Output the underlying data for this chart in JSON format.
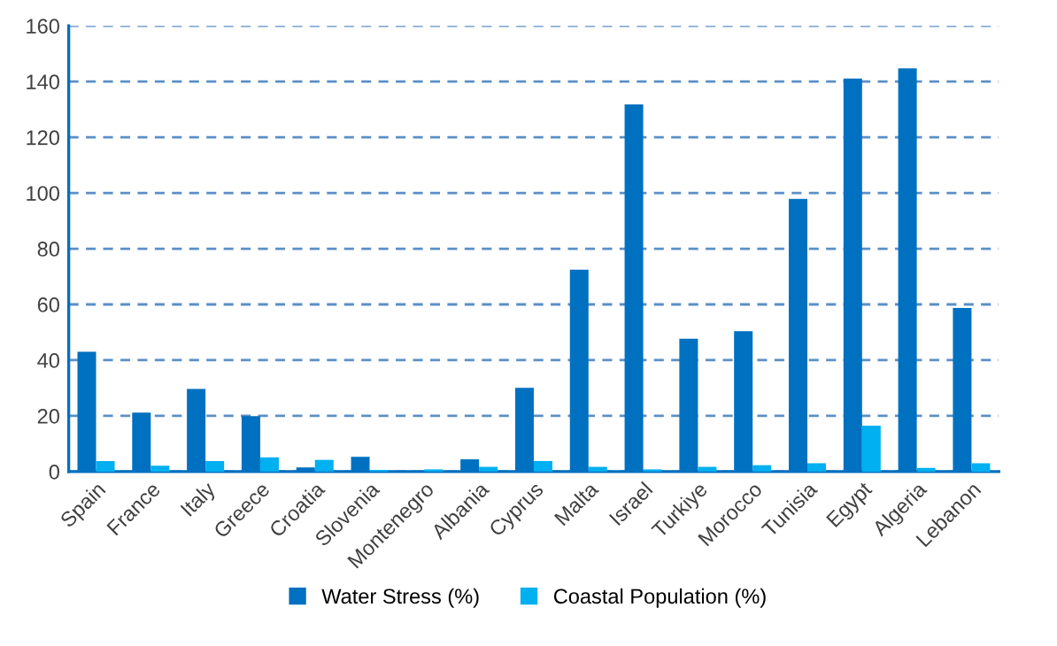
{
  "chart_data": {
    "type": "bar",
    "categories": [
      "Spain",
      "France",
      "Italy",
      "Greece",
      "Croatia",
      "Slovenia",
      "Montenegro",
      "Albania",
      "Cyprus",
      "Malta",
      "Israel",
      "Turkiye",
      "Morocco",
      "Tunisia",
      "Egypt",
      "Algeria",
      "Lebanon"
    ],
    "series": [
      {
        "name": "Water Stress (%)",
        "color": "#0070c0",
        "values": [
          43,
          21.2,
          29.7,
          19.9,
          1.5,
          5.3,
          0.2,
          4.4,
          30.1,
          72.5,
          131.8,
          47.7,
          50.4,
          97.9,
          141.1,
          144.7,
          58.7
        ]
      },
      {
        "name": "Coastal Population (%)",
        "color": "#00b0f0",
        "values": [
          3.8,
          2.1,
          3.8,
          5.1,
          4.2,
          0.6,
          0.8,
          1.7,
          3.8,
          1.7,
          0.8,
          1.7,
          2.3,
          3.0,
          16.5,
          1.3,
          3.0
        ]
      }
    ],
    "ylim": [
      0,
      160
    ],
    "yticks": [
      0,
      20,
      40,
      60,
      80,
      100,
      120,
      140,
      160
    ],
    "grid": "y",
    "legend": "bottom"
  }
}
